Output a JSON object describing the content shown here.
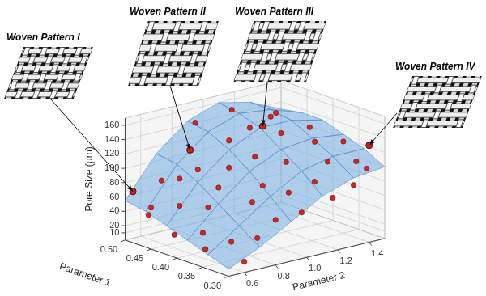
{
  "chart_data": {
    "type": "surface3d",
    "x_label": "Parameter 1",
    "y_label": "Parameter 2",
    "z_label": "Pore Size (μm)",
    "xlim": [
      0.3,
      0.5
    ],
    "xticks": [
      {
        "value": 0.5,
        "label": "0.50"
      },
      {
        "value": 0.45,
        "label": "0.45"
      },
      {
        "value": 0.4,
        "label": "0.40"
      },
      {
        "value": 0.35,
        "label": "0.35"
      },
      {
        "value": 0.3,
        "label": "0.30"
      }
    ],
    "ylim": [
      0.5,
      1.5
    ],
    "yticks": [
      0.6,
      0.8,
      {
        "value": 1,
        "label": "1.0"
      },
      1.2,
      1.4
    ],
    "zlim": [
      0,
      170
    ],
    "zticks": [
      10,
      20,
      40,
      60,
      80,
      100,
      120,
      140,
      160
    ],
    "grid": true,
    "surface": {
      "color": "#7fb2e5",
      "x": [
        0.3,
        0.34,
        0.38,
        0.42,
        0.46,
        0.5
      ],
      "y": [
        0.5,
        0.7,
        0.9,
        1.1,
        1.3,
        1.5
      ],
      "z": [
        [
          10,
          30,
          55,
          80,
          95,
          100
        ],
        [
          20,
          50,
          80,
          105,
          115,
          115
        ],
        [
          30,
          70,
          105,
          125,
          130,
          125
        ],
        [
          40,
          90,
          125,
          145,
          145,
          135
        ],
        [
          50,
          105,
          140,
          155,
          150,
          135
        ],
        [
          55,
          110,
          145,
          160,
          150,
          130
        ]
      ]
    },
    "points": {
      "color": "#c62828",
      "x": [
        0.48,
        0.47,
        0.44,
        0.42,
        0.45,
        0.4,
        0.38,
        0.36,
        0.34,
        0.32,
        0.3,
        0.31,
        0.33,
        0.35,
        0.3,
        0.32,
        0.37,
        0.39,
        0.41,
        0.43,
        0.46,
        0.49,
        0.48,
        0.44,
        0.5,
        0.47,
        0.36,
        0.4,
        0.38,
        0.42,
        0.34,
        0.33,
        0.45,
        0.31,
        0.49,
        0.41,
        0.37,
        0.35
      ],
      "y": [
        0.6,
        0.75,
        0.65,
        0.9,
        1.0,
        0.7,
        0.6,
        0.85,
        0.65,
        0.75,
        0.6,
        1.0,
        1.15,
        1.3,
        1.3,
        1.45,
        1.1,
        1.35,
        1.2,
        1.45,
        1.3,
        1.15,
        1.4,
        1.1,
        0.95,
        0.55,
        0.55,
        1.0,
        1.5,
        0.55,
        1.45,
        0.9,
        0.8,
        1.2,
        0.7,
        0.8,
        0.95,
        1.05
      ],
      "z": [
        45,
        80,
        55,
        100,
        125,
        60,
        35,
        70,
        30,
        35,
        15,
        60,
        90,
        105,
        85,
        95,
        110,
        120,
        135,
        125,
        140,
        150,
        135,
        140,
        140,
        40,
        20,
        115,
        115,
        25,
        100,
        50,
        95,
        70,
        75,
        80,
        85,
        75
      ]
    },
    "annotations": [
      {
        "text": "Woven Pattern I",
        "x": 0.5,
        "y": 0.55,
        "z": 65
      },
      {
        "text": "Woven Pattern II",
        "x": 0.45,
        "y": 0.75,
        "z": 125
      },
      {
        "text": "Woven Pattern III",
        "x": 0.4,
        "y": 1.05,
        "z": 155
      },
      {
        "text": "Woven Pattern IV",
        "x": 0.3,
        "y": 1.4,
        "z": 135
      }
    ]
  }
}
